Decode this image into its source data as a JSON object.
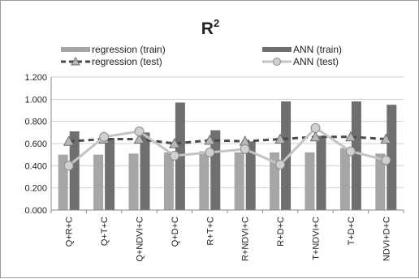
{
  "chart_data": {
    "type": "bar",
    "title": "R",
    "title_superscript": "2",
    "categories": [
      "Q+R+C",
      "Q+T+C",
      "Q+NDVI+C",
      "Q+D+C",
      "R+T+C",
      "R+NDVI+C",
      "R+D+C",
      "T+NDVI+C",
      "T+D+C",
      "NDVI+D+C"
    ],
    "ylim": [
      0,
      1.2
    ],
    "yticks": [
      "0.000",
      "0.200",
      "0.400",
      "0.600",
      "0.800",
      "1.000",
      "1.200"
    ],
    "ytick_values": [
      0,
      0.2,
      0.4,
      0.6,
      0.8,
      1.0,
      1.2
    ],
    "grid": true,
    "legend_position": "top",
    "series": [
      {
        "name": "regression (train)",
        "kind": "bar",
        "color": "#a6a6a6",
        "values": [
          0.5,
          0.5,
          0.51,
          0.52,
          0.53,
          0.52,
          0.52,
          0.52,
          0.56,
          0.51
        ]
      },
      {
        "name": "ANN (train)",
        "kind": "bar",
        "color": "#6f6f6f",
        "values": [
          0.71,
          0.65,
          0.7,
          0.97,
          0.72,
          0.62,
          0.98,
          0.67,
          0.98,
          0.95
        ]
      },
      {
        "name": "regression (test)",
        "kind": "line",
        "color": "#4a4a4a",
        "marker": "triangle",
        "values": [
          0.62,
          0.64,
          0.64,
          0.6,
          0.63,
          0.62,
          0.64,
          0.66,
          0.66,
          0.64
        ]
      },
      {
        "name": "ANN (test)",
        "kind": "line",
        "color": "#c4c4c4",
        "marker": "circle",
        "values": [
          0.4,
          0.66,
          0.71,
          0.49,
          0.52,
          0.55,
          0.41,
          0.74,
          0.53,
          0.45
        ]
      }
    ]
  }
}
